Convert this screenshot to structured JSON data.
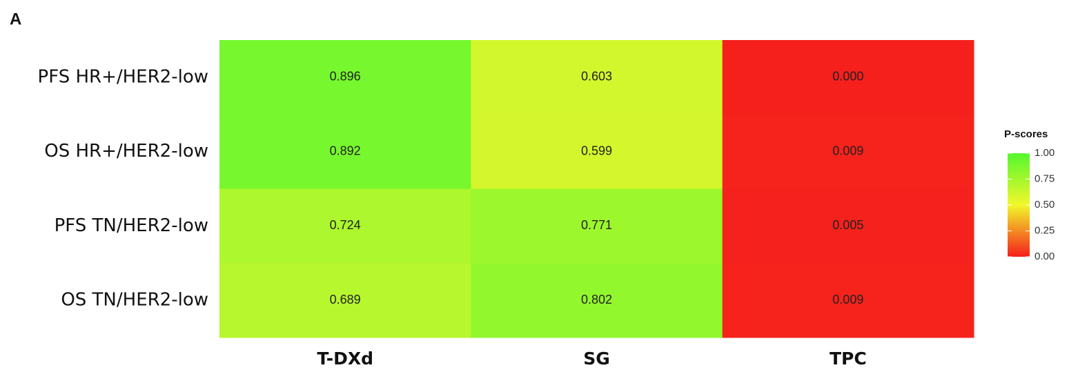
{
  "chart_data": {
    "type": "heatmap",
    "panel_label": "A",
    "rows": [
      "PFS HR+/HER2-low",
      "OS HR+/HER2-low",
      "PFS TN/HER2-low",
      "OS TN/HER2-low"
    ],
    "columns": [
      "T-DXd",
      "SG",
      "TPC"
    ],
    "values": [
      [
        0.896,
        0.603,
        0
      ],
      [
        0.892,
        0.599,
        0.009
      ],
      [
        0.724,
        0.771,
        0.005
      ],
      [
        0.689,
        0.802,
        0.009
      ]
    ],
    "value_labels": [
      [
        "0.896",
        "0.603",
        "0.000"
      ],
      [
        "0.892",
        "0.599",
        "0.009"
      ],
      [
        "0.724",
        "0.771",
        "0.005"
      ],
      [
        "0.689",
        "0.802",
        "0.009"
      ]
    ],
    "legend_title": "P-scores",
    "colors": [
      "#f51f1c",
      "#f2f72b",
      "#55f72f"
    ],
    "clim": [
      0,
      1
    ],
    "cticks": [
      {
        "value": 0,
        "label": "0.00"
      },
      {
        "value": 0.25,
        "label": "0.25"
      },
      {
        "value": 0.5,
        "label": "0.50"
      },
      {
        "value": 0.75,
        "label": "0.75"
      },
      {
        "value": 1,
        "label": "1.00"
      }
    ]
  }
}
